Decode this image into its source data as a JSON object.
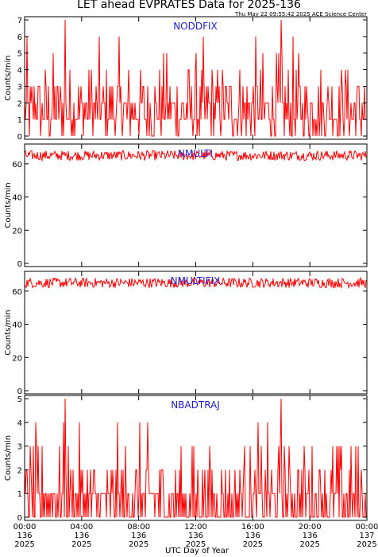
{
  "title": "LET ahead EVPRATES Data for 2025-136",
  "timestamp": "Thu May 22 09:55:42 2025 ACE Science Center",
  "xlabel": "UTC Day of Year",
  "series_color": "#ff0000",
  "label_color": "#1f1fd6",
  "x_ticks": [
    {
      "time": "00:00",
      "doy": "136",
      "year": "2025"
    },
    {
      "time": "04:00",
      "doy": "136",
      "year": "2025"
    },
    {
      "time": "08:00",
      "doy": "136",
      "year": "2025"
    },
    {
      "time": "12:00",
      "doy": "136",
      "year": "2025"
    },
    {
      "time": "16:00",
      "doy": "136",
      "year": "2025"
    },
    {
      "time": "20:00",
      "doy": "136",
      "year": "2025"
    },
    {
      "time": "00:00",
      "doy": "137",
      "year": "2025"
    }
  ],
  "chart_data": [
    {
      "type": "line",
      "name": "NODDFIX",
      "ylabel": "Counts/min",
      "xlim": [
        0,
        24
      ],
      "ylim": [
        0,
        7
      ],
      "yticks": [
        0,
        1,
        2,
        3,
        4,
        5,
        6,
        7
      ],
      "x_units": "hours UT on 2025-136",
      "typical_range": [
        0,
        4
      ],
      "max_value": 7
    },
    {
      "type": "line",
      "name": "NMULTI",
      "ylabel": "Counts/min",
      "xlim": [
        0,
        24
      ],
      "ylim": [
        0,
        70
      ],
      "yticks": [
        0,
        20,
        40,
        60
      ],
      "x_units": "hours UT on 2025-136",
      "typical_range": [
        62,
        68
      ]
    },
    {
      "type": "line",
      "name": "NMULTIFIX",
      "ylabel": "Counts/min",
      "xlim": [
        0,
        24
      ],
      "ylim": [
        0,
        70
      ],
      "yticks": [
        0,
        20,
        40,
        60
      ],
      "x_units": "hours UT on 2025-136",
      "typical_range": [
        62,
        68
      ]
    },
    {
      "type": "line",
      "name": "NBADTRAJ",
      "ylabel": "Counts/min",
      "xlim": [
        0,
        24
      ],
      "ylim": [
        0,
        5
      ],
      "yticks": [
        0,
        1,
        2,
        3,
        4,
        5
      ],
      "x_units": "hours UT on 2025-136",
      "typical_range": [
        0,
        2
      ],
      "max_value": 5
    }
  ]
}
